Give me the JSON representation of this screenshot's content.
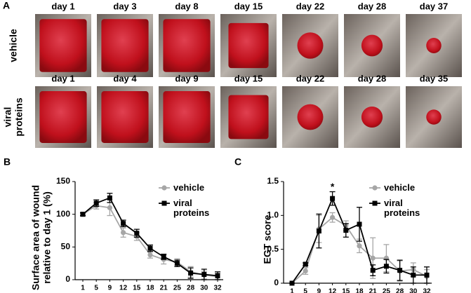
{
  "panel_a": {
    "panel_label": "A",
    "rows": [
      {
        "label": [
          "vehicle"
        ],
        "days": [
          "day 1",
          "day 3",
          "day 8",
          "day 15",
          "day 22",
          "day 28",
          "day 37"
        ]
      },
      {
        "label": [
          "viral",
          "proteins"
        ],
        "days": [
          "day 1",
          "day 4",
          "day 9",
          "day 15",
          "day 22",
          "day 28",
          "day 35"
        ]
      }
    ]
  },
  "chart_data": [
    {
      "type": "line",
      "panel_label": "B",
      "ylabel": [
        "Surface area of wound",
        "relative to day 1 (%)"
      ],
      "categories": [
        "1",
        "5",
        "9",
        "12",
        "15",
        "18",
        "21",
        "25",
        "28",
        "30",
        "32"
      ],
      "ylim": [
        0,
        150
      ],
      "yticks": [
        0,
        50,
        100,
        150
      ],
      "series": [
        {
          "name": "vehicle",
          "color": "#a6a6a6",
          "marker": "circle",
          "values": [
            100,
            113,
            110,
            72,
            66,
            38,
            31,
            27,
            12,
            7,
            5
          ],
          "errors": [
            3,
            5,
            12,
            7,
            6,
            5,
            7,
            5,
            8,
            6,
            5
          ]
        },
        {
          "name": "viral proteins",
          "color": "#000000",
          "marker": "square",
          "values": [
            100,
            117,
            125,
            86,
            71,
            48,
            35,
            25,
            10,
            8,
            6
          ],
          "errors": [
            2,
            5,
            7,
            5,
            6,
            5,
            4,
            5,
            8,
            8,
            6
          ]
        }
      ]
    },
    {
      "type": "line",
      "panel_label": "C",
      "ylabel": [
        "EGT score"
      ],
      "categories": [
        "1",
        "5",
        "9",
        "12",
        "15",
        "18",
        "21",
        "25",
        "28",
        "30",
        "32"
      ],
      "ylim": [
        0,
        1.5
      ],
      "yticks": [
        0,
        0.5,
        {
          "value": 1,
          "label": "1.0"
        },
        1.5
      ],
      "annotations": [
        {
          "text": "*",
          "x": "12"
        }
      ],
      "series": [
        {
          "name": "vehicle",
          "color": "#a6a6a6",
          "marker": "circle",
          "values": [
            0,
            0.18,
            0.8,
            0.97,
            0.85,
            0.55,
            0.37,
            0.37,
            0.18,
            0.2,
            0.1
          ],
          "errors": [
            0,
            0.05,
            0.2,
            0.07,
            0.07,
            0.1,
            0.3,
            0.2,
            0.15,
            0.1,
            0.1
          ]
        },
        {
          "name": "viral proteins",
          "color": "#000000",
          "marker": "square",
          "values": [
            0,
            0.28,
            0.77,
            1.25,
            0.78,
            0.87,
            0.19,
            0.25,
            0.19,
            0.12,
            0.12
          ],
          "errors": [
            0,
            0.02,
            0.25,
            0.1,
            0.1,
            0.25,
            0.08,
            0.1,
            0.15,
            0.12,
            0.12
          ]
        }
      ]
    }
  ]
}
